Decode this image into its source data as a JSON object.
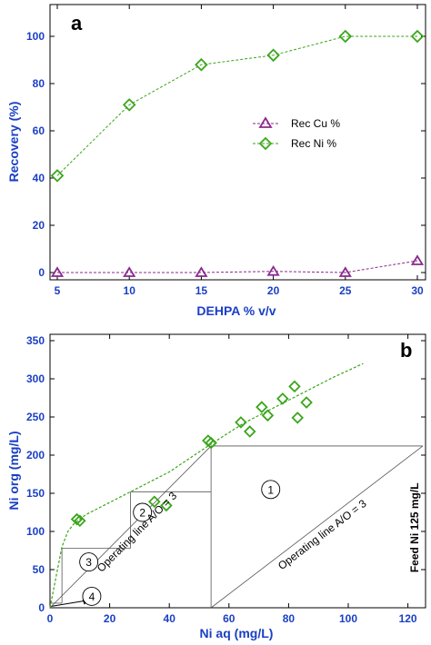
{
  "chart_data": [
    {
      "panel": "a",
      "type": "line",
      "xlabel": "DEHPA % v/v",
      "ylabel": "Recovery (%)",
      "xlim": [
        5,
        30
      ],
      "ylim": [
        0,
        110
      ],
      "xticks": [
        5,
        10,
        15,
        20,
        25,
        30
      ],
      "yticks": [
        0,
        20,
        40,
        60,
        80,
        100
      ],
      "legend_position": "center-right",
      "series": [
        {
          "name": "Rec Cu %",
          "marker": "triangle",
          "color": "#8b2a8b",
          "x": [
            5,
            10,
            15,
            20,
            25,
            30
          ],
          "y": [
            0,
            0,
            0,
            0.5,
            0,
            5
          ]
        },
        {
          "name": "Rec Ni %",
          "marker": "diamond",
          "color": "#3aa61a",
          "x": [
            5,
            10,
            15,
            20,
            25,
            30
          ],
          "y": [
            41,
            71,
            88,
            92,
            100,
            100
          ]
        }
      ]
    },
    {
      "panel": "b",
      "type": "scatter",
      "xlabel": "Ni aq (mg/L)",
      "ylabel": "Ni org (mg/L)",
      "xlim": [
        0,
        125
      ],
      "ylim": [
        0,
        350
      ],
      "xticks": [
        0,
        20,
        40,
        60,
        80,
        100,
        120
      ],
      "yticks": [
        0,
        50,
        100,
        150,
        200,
        250,
        300,
        350
      ],
      "points": {
        "x": [
          9,
          10,
          35,
          39,
          53,
          54,
          64,
          67,
          71,
          73,
          78,
          82,
          83,
          86
        ],
        "y": [
          116,
          114,
          139,
          134,
          219,
          216,
          243,
          231,
          263,
          252,
          274,
          290,
          249,
          269
        ]
      },
      "fit_curve": {
        "x": [
          0,
          2,
          4,
          6,
          8,
          12,
          20,
          30,
          40,
          53,
          65,
          75,
          85,
          95,
          105
        ],
        "y": [
          0,
          40,
          80,
          100,
          110,
          122,
          138,
          158,
          178,
          212,
          242,
          262,
          282,
          302,
          320
        ]
      },
      "operating_line": {
        "x": [
          0,
          54
        ],
        "y": [
          0,
          212
        ]
      },
      "feed_line_x": 125,
      "stages": [
        {
          "label": "1",
          "x": [
            54,
            125
          ],
          "y": [
            0,
            212
          ]
        },
        {
          "label": "2",
          "x": [
            27,
            54
          ],
          "y": [
            78,
            152
          ]
        },
        {
          "label": "3",
          "x": [
            4,
            27
          ],
          "y": [
            0,
            78
          ]
        },
        {
          "label": "4",
          "x": [
            0,
            4
          ],
          "y": [
            0,
            6
          ]
        }
      ],
      "annotations": {
        "op_line_left": "Operating line A/O = 3",
        "op_line_right": "Operating line A/O = 3",
        "feed_label": "Feed Ni 125 mg/L"
      }
    }
  ],
  "colors": {
    "axis_text": "#1a3fc4",
    "ni": "#3aa61a",
    "cu": "#8b2a8b"
  }
}
